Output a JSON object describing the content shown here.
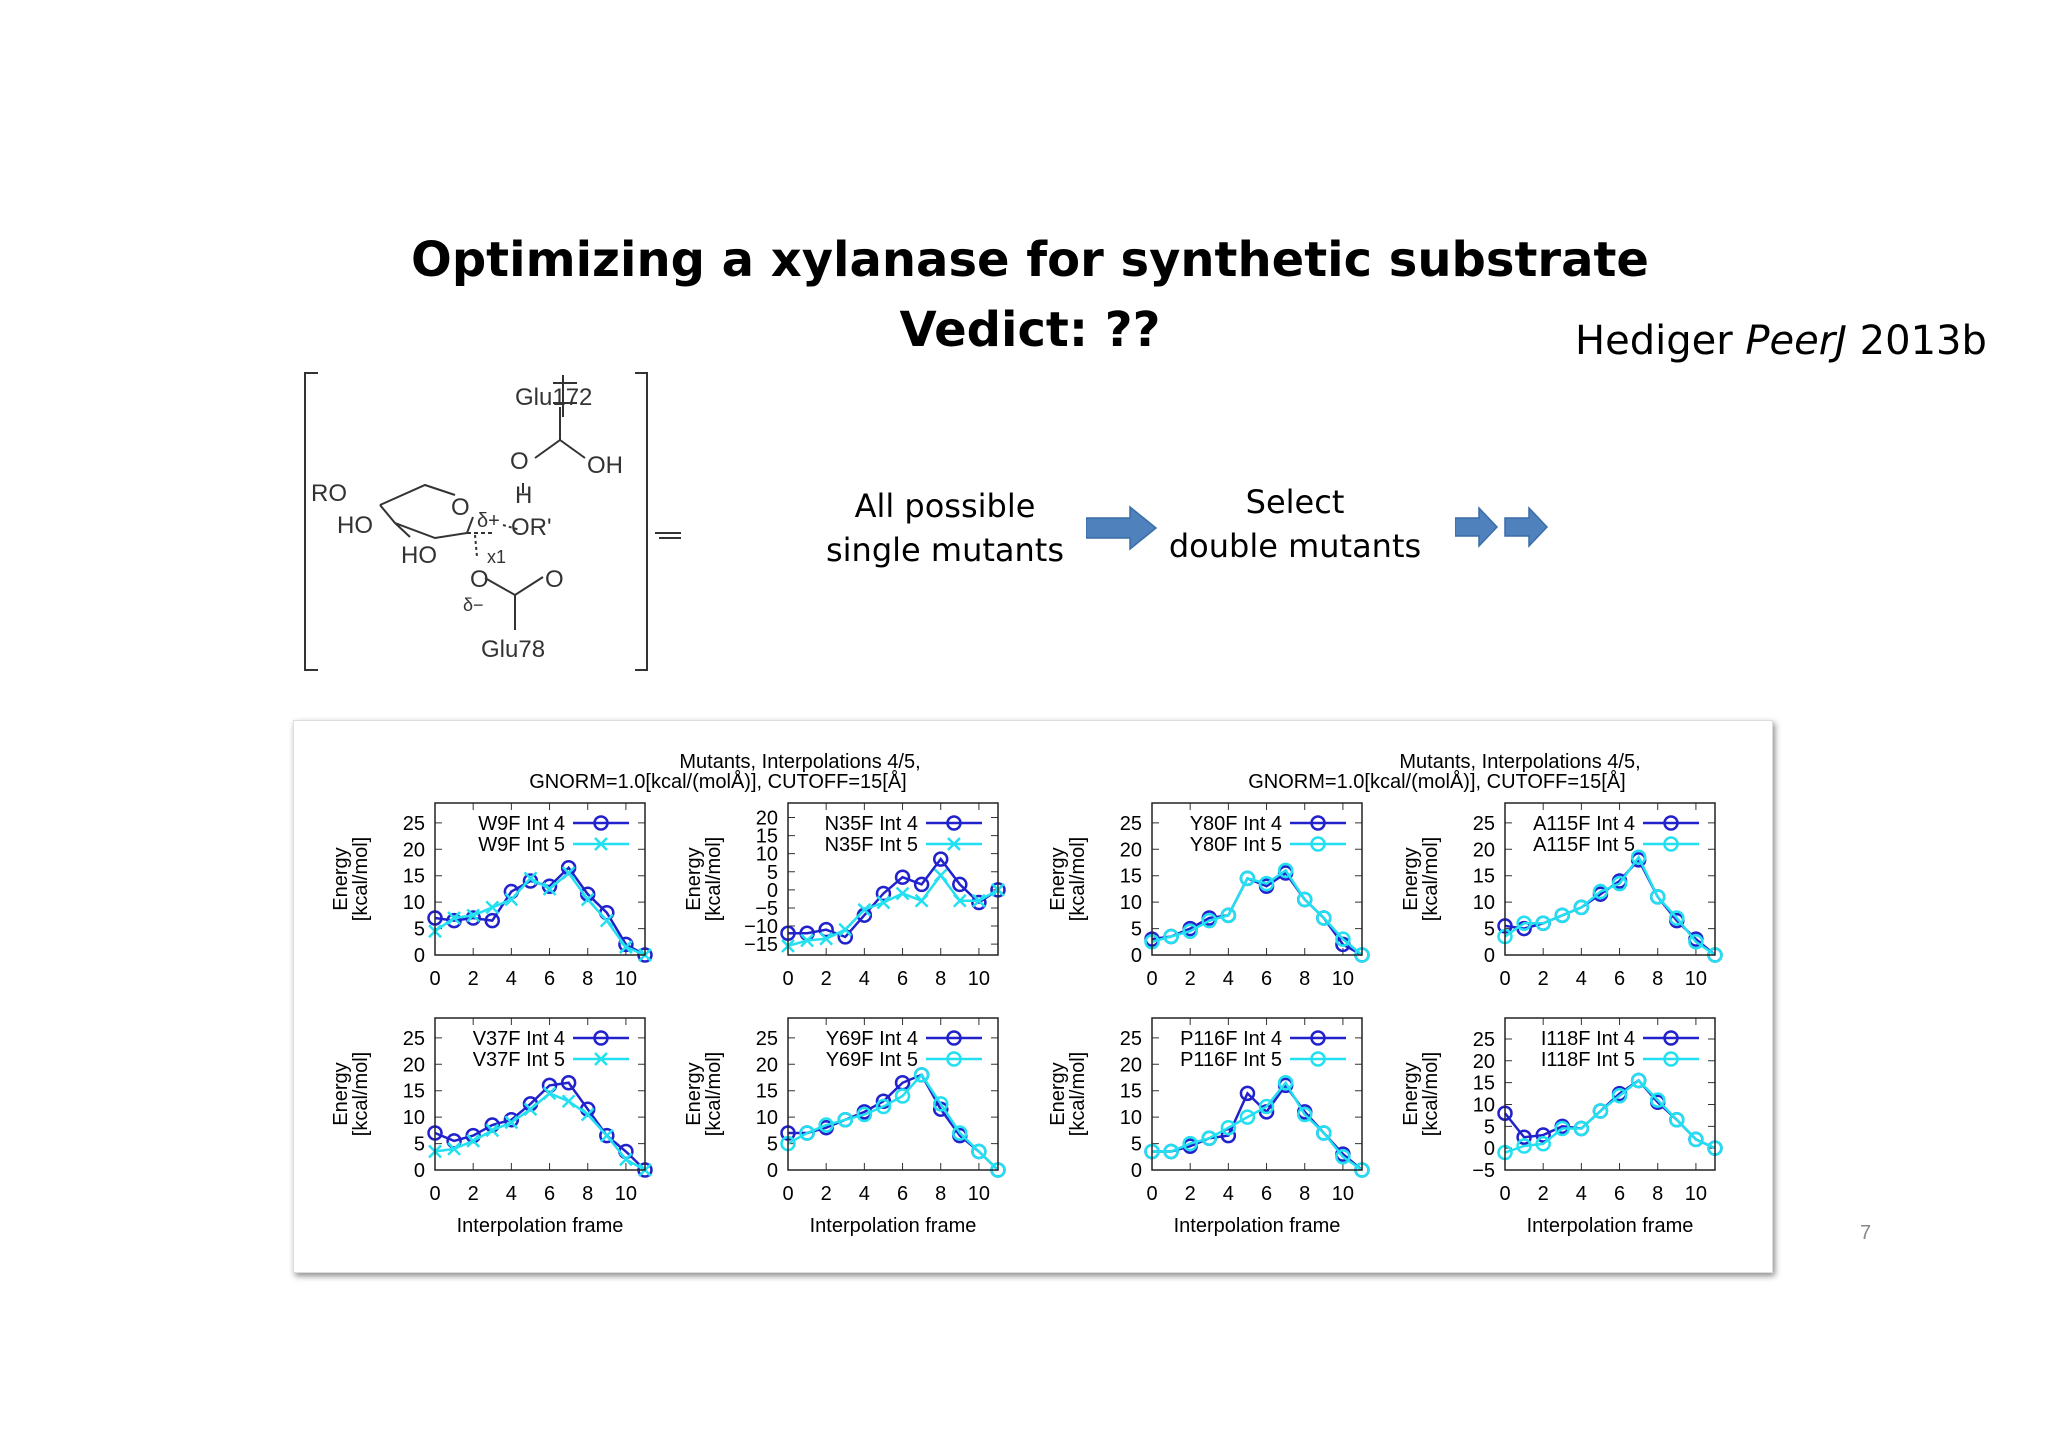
{
  "slide": {
    "title_line1": "Optimizing a xylanase for synthetic substrate",
    "title_line2": "Vedict: ??",
    "citation_author": "Hediger ",
    "citation_journal": "PeerJ",
    "citation_year": " 2013b",
    "step1_line1": "All possible",
    "step1_line2": "single mutants",
    "step2_line1": "Select",
    "step2_line2": "double mutants",
    "page_number": "7",
    "arrow_color": "#4a7ebb"
  },
  "structure": {
    "glu172": "Glu172",
    "o_top": "O",
    "oh": "OH",
    "h": "H",
    "ro": "RO",
    "ho1": "HO",
    "ho2": "HO",
    "ring_o": "O",
    "delta_plus": "δ+",
    "or_prime": "OR'",
    "x1": "x1",
    "o_bottom_left": "O",
    "o_bottom_right": "O",
    "delta_minus": "δ−",
    "glu78": "Glu78",
    "double_dagger": "‡"
  },
  "figure": {
    "suptitle_line1": "Mutants, Interpolations 4/5,",
    "suptitle_line2": "GNORM=1.0[kcal/(molÅ)], CUTOFF=15[Å]",
    "ylabel_line1": "Energy",
    "ylabel_line2": "[kcal/mol]",
    "xlabel": "Interpolation frame",
    "colors": {
      "int4": "#2222cc",
      "int5": "#22e0f0"
    }
  },
  "chart_data": [
    {
      "type": "line",
      "x": [
        0,
        1,
        2,
        3,
        4,
        5,
        6,
        7,
        8,
        9,
        10,
        11
      ],
      "xlim": [
        0,
        11
      ],
      "ylim": [
        0,
        28.75
      ],
      "xticks": [
        0,
        2,
        4,
        6,
        8,
        10
      ],
      "yticks": [
        0,
        5,
        10,
        15,
        20,
        25
      ],
      "xlabel": "",
      "ylabel": "Energy [kcal/mol]",
      "legend": "top-left",
      "series": [
        {
          "name": "W9F Int 4",
          "marker": "circle",
          "values": [
            7,
            6.5,
            7,
            6.5,
            12,
            14,
            13,
            16.5,
            11.5,
            8,
            2,
            0
          ]
        },
        {
          "name": "W9F Int 5",
          "marker": "x",
          "values": [
            4.5,
            7,
            7.5,
            9,
            10.5,
            14.5,
            12.5,
            15.5,
            10.5,
            6.5,
            1.5,
            0
          ]
        }
      ]
    },
    {
      "type": "line",
      "x": [
        0,
        1,
        2,
        3,
        4,
        5,
        6,
        7,
        8,
        9,
        10,
        11
      ],
      "xlim": [
        0,
        11
      ],
      "ylim": [
        -18,
        24
      ],
      "xticks": [
        0,
        2,
        4,
        6,
        8,
        10
      ],
      "yticks": [
        -15,
        -10,
        -5,
        0,
        5,
        10,
        15,
        20
      ],
      "xlabel": "",
      "ylabel": "Energy [kcal/mol]",
      "legend": "top-left",
      "series": [
        {
          "name": "N35F Int 4",
          "marker": "circle",
          "values": [
            -12,
            -12,
            -11,
            -13,
            -7,
            -1,
            3.5,
            1.5,
            8.5,
            1.5,
            -3.5,
            0
          ]
        },
        {
          "name": "N35F Int 5",
          "marker": "x",
          "values": [
            -15.5,
            -14,
            -13.5,
            -11,
            -5.5,
            -3.5,
            -1,
            -3,
            4,
            -3,
            -3,
            0
          ]
        }
      ]
    },
    {
      "type": "line",
      "x": [
        0,
        1,
        2,
        3,
        4,
        5,
        6,
        7,
        8,
        9,
        10,
        11
      ],
      "xlim": [
        0,
        11
      ],
      "ylim": [
        0,
        28.75
      ],
      "xticks": [
        0,
        2,
        4,
        6,
        8,
        10
      ],
      "yticks": [
        0,
        5,
        10,
        15,
        20,
        25
      ],
      "xlabel": "",
      "ylabel": "Energy [kcal/mol]",
      "legend": "top-left",
      "series": [
        {
          "name": "Y80F Int 4",
          "marker": "circle",
          "values": [
            3,
            3.5,
            5,
            7,
            7.5,
            14.5,
            13,
            15.5,
            10.5,
            7,
            2,
            0
          ]
        },
        {
          "name": "Y80F Int 5",
          "marker": "circle",
          "values": [
            2.5,
            3.5,
            4.5,
            6.5,
            7.5,
            14.5,
            13.5,
            16,
            10.5,
            7,
            3,
            0
          ]
        }
      ]
    },
    {
      "type": "line",
      "x": [
        0,
        1,
        2,
        3,
        4,
        5,
        6,
        7,
        8,
        9,
        10,
        11
      ],
      "xlim": [
        0,
        11
      ],
      "ylim": [
        0,
        28.75
      ],
      "xticks": [
        0,
        2,
        4,
        6,
        8,
        10
      ],
      "yticks": [
        0,
        5,
        10,
        15,
        20,
        25
      ],
      "xlabel": "",
      "ylabel": "Energy [kcal/mol]",
      "legend": "top-left",
      "series": [
        {
          "name": "A115F Int 4",
          "marker": "circle",
          "values": [
            5.5,
            5,
            6,
            7.5,
            9,
            11.5,
            14,
            18,
            11,
            6.5,
            3,
            0
          ]
        },
        {
          "name": "A115F Int 5",
          "marker": "circle",
          "values": [
            3.5,
            6,
            6,
            7.5,
            9,
            12,
            13.5,
            18.5,
            11,
            7,
            2.5,
            0
          ]
        }
      ]
    },
    {
      "type": "line",
      "x": [
        0,
        1,
        2,
        3,
        4,
        5,
        6,
        7,
        8,
        9,
        10,
        11
      ],
      "xlim": [
        0,
        11
      ],
      "ylim": [
        0,
        28.75
      ],
      "xticks": [
        0,
        2,
        4,
        6,
        8,
        10
      ],
      "yticks": [
        0,
        5,
        10,
        15,
        20,
        25
      ],
      "xlabel": "Interpolation frame",
      "ylabel": "Energy [kcal/mol]",
      "legend": "top-left",
      "series": [
        {
          "name": "V37F Int 4",
          "marker": "circle",
          "values": [
            7,
            5.5,
            6.5,
            8.5,
            9.5,
            12.5,
            16,
            16.5,
            11.5,
            6.5,
            3.5,
            0
          ]
        },
        {
          "name": "V37F Int 5",
          "marker": "x",
          "values": [
            3.5,
            4,
            5.5,
            7.5,
            9,
            11.5,
            14.5,
            13,
            10.5,
            6.5,
            2,
            0
          ]
        }
      ]
    },
    {
      "type": "line",
      "x": [
        0,
        1,
        2,
        3,
        4,
        5,
        6,
        7,
        8,
        9,
        10,
        11
      ],
      "xlim": [
        0,
        11
      ],
      "ylim": [
        0,
        28.75
      ],
      "xticks": [
        0,
        2,
        4,
        6,
        8,
        10
      ],
      "yticks": [
        0,
        5,
        10,
        15,
        20,
        25
      ],
      "xlabel": "Interpolation frame",
      "ylabel": "Energy [kcal/mol]",
      "legend": "top-left",
      "series": [
        {
          "name": "Y69F Int 4",
          "marker": "circle",
          "values": [
            7,
            7,
            8,
            9.5,
            11,
            13,
            16.5,
            18,
            11.5,
            6.5,
            3.5,
            0
          ]
        },
        {
          "name": "Y69F Int 5",
          "marker": "circle",
          "values": [
            5,
            7,
            8.5,
            9.5,
            10.5,
            12,
            14,
            18,
            12.5,
            7,
            3.5,
            0
          ]
        }
      ]
    },
    {
      "type": "line",
      "x": [
        0,
        1,
        2,
        3,
        4,
        5,
        6,
        7,
        8,
        9,
        10,
        11
      ],
      "xlim": [
        0,
        11
      ],
      "ylim": [
        0,
        28.75
      ],
      "xticks": [
        0,
        2,
        4,
        6,
        8,
        10
      ],
      "yticks": [
        0,
        5,
        10,
        15,
        20,
        25
      ],
      "xlabel": "Interpolation frame",
      "ylabel": "Energy [kcal/mol]",
      "legend": "top-left",
      "series": [
        {
          "name": "P116F Int 4",
          "marker": "circle",
          "values": [
            3.5,
            3.5,
            4.5,
            6,
            6.5,
            14.5,
            11,
            16,
            11,
            7,
            3,
            0
          ]
        },
        {
          "name": "P116F Int 5",
          "marker": "circle",
          "values": [
            3.5,
            3.5,
            5,
            6,
            8,
            10,
            12,
            16.5,
            10.5,
            7,
            2.5,
            0
          ]
        }
      ]
    },
    {
      "type": "line",
      "x": [
        0,
        1,
        2,
        3,
        4,
        5,
        6,
        7,
        8,
        9,
        10,
        11
      ],
      "xlim": [
        0,
        11
      ],
      "ylim": [
        -5,
        29.8
      ],
      "xticks": [
        0,
        2,
        4,
        6,
        8,
        10
      ],
      "yticks": [
        -5,
        0,
        5,
        10,
        15,
        20,
        25
      ],
      "xlabel": "Interpolation frame",
      "ylabel": "Energy [kcal/mol]",
      "legend": "top-left",
      "series": [
        {
          "name": "I118F Int 4",
          "marker": "circle",
          "values": [
            8,
            2.5,
            3,
            5,
            4.5,
            8.5,
            12.5,
            15.5,
            10.5,
            6.5,
            2,
            0
          ]
        },
        {
          "name": "I118F Int 5",
          "marker": "circle",
          "values": [
            -1,
            0.5,
            1,
            4.5,
            4.5,
            8.5,
            12,
            15.5,
            11,
            6.5,
            2,
            0
          ]
        }
      ]
    }
  ]
}
